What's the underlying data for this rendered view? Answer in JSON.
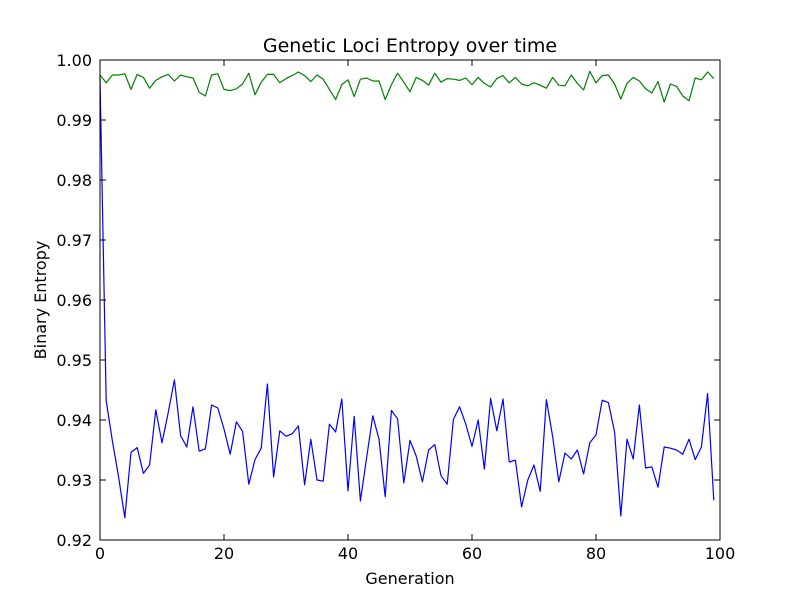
{
  "chart_data": {
    "type": "line",
    "title": "Genetic Loci Entropy over time",
    "xlabel": "Generation",
    "ylabel": "Binary Entropy",
    "xlim": [
      0,
      100
    ],
    "ylim": [
      0.92,
      1.0
    ],
    "xticks": [
      0,
      20,
      40,
      60,
      80,
      100
    ],
    "xtick_labels": [
      "0",
      "20",
      "40",
      "60",
      "80",
      "100"
    ],
    "yticks": [
      0.92,
      0.93,
      0.94,
      0.95,
      0.96,
      0.97,
      0.98,
      0.99,
      1.0
    ],
    "ytick_labels": [
      "0.92",
      "0.93",
      "0.94",
      "0.95",
      "0.96",
      "0.97",
      "0.98",
      "0.99",
      "1.00"
    ],
    "grid": false,
    "legend": false,
    "x": [
      0,
      1,
      2,
      3,
      4,
      5,
      6,
      7,
      8,
      9,
      10,
      11,
      12,
      13,
      14,
      15,
      16,
      17,
      18,
      19,
      20,
      21,
      22,
      23,
      24,
      25,
      26,
      27,
      28,
      29,
      30,
      31,
      32,
      33,
      34,
      35,
      36,
      37,
      38,
      39,
      40,
      41,
      42,
      43,
      44,
      45,
      46,
      47,
      48,
      49,
      50,
      51,
      52,
      53,
      54,
      55,
      56,
      57,
      58,
      59,
      60,
      61,
      62,
      63,
      64,
      65,
      66,
      67,
      68,
      69,
      70,
      71,
      72,
      73,
      74,
      75,
      76,
      77,
      78,
      79,
      80,
      81,
      82,
      83,
      84,
      85,
      86,
      87,
      88,
      89,
      90,
      91,
      92,
      93,
      94,
      95,
      96,
      97,
      98,
      99
    ],
    "series": [
      {
        "color": "#008000",
        "values": [
          0.9975,
          0.9962,
          0.9975,
          0.9975,
          0.9977,
          0.9951,
          0.9976,
          0.9971,
          0.9953,
          0.9966,
          0.9972,
          0.9976,
          0.9965,
          0.9975,
          0.9972,
          0.997,
          0.9946,
          0.994,
          0.9975,
          0.9977,
          0.9951,
          0.9949,
          0.9952,
          0.996,
          0.9978,
          0.9942,
          0.9963,
          0.9976,
          0.9976,
          0.9962,
          0.9969,
          0.9974,
          0.998,
          0.9974,
          0.9964,
          0.9975,
          0.9968,
          0.9951,
          0.9934,
          0.9959,
          0.9967,
          0.9939,
          0.9968,
          0.997,
          0.9965,
          0.9965,
          0.9934,
          0.9959,
          0.9978,
          0.9963,
          0.9947,
          0.9971,
          0.9966,
          0.9958,
          0.9978,
          0.9963,
          0.9969,
          0.9968,
          0.9966,
          0.997,
          0.9959,
          0.9971,
          0.9961,
          0.9955,
          0.9969,
          0.9974,
          0.9962,
          0.9971,
          0.996,
          0.9957,
          0.9962,
          0.9958,
          0.9953,
          0.9971,
          0.9958,
          0.9957,
          0.9975,
          0.9961,
          0.995,
          0.9981,
          0.9962,
          0.9974,
          0.9975,
          0.996,
          0.9935,
          0.9961,
          0.9971,
          0.9965,
          0.9952,
          0.9945,
          0.9964,
          0.993,
          0.996,
          0.9956,
          0.994,
          0.9932,
          0.997,
          0.9967,
          0.998,
          0.9969
        ]
      },
      {
        "color": "#0000ff",
        "values": [
          0.997,
          0.9432,
          0.9365,
          0.9305,
          0.9237,
          0.9346,
          0.9354,
          0.9311,
          0.9325,
          0.9417,
          0.9362,
          0.9412,
          0.9467,
          0.9374,
          0.9355,
          0.9422,
          0.9348,
          0.9352,
          0.9425,
          0.942,
          0.9385,
          0.9343,
          0.9397,
          0.9381,
          0.9293,
          0.9334,
          0.9353,
          0.946,
          0.9305,
          0.9382,
          0.9373,
          0.9377,
          0.939,
          0.9292,
          0.9368,
          0.93,
          0.9298,
          0.9393,
          0.938,
          0.9435,
          0.9282,
          0.9406,
          0.9265,
          0.9337,
          0.9407,
          0.9368,
          0.9272,
          0.9416,
          0.9402,
          0.9295,
          0.9366,
          0.934,
          0.9297,
          0.935,
          0.9359,
          0.9307,
          0.9293,
          0.9401,
          0.9422,
          0.9393,
          0.9356,
          0.94,
          0.9318,
          0.9436,
          0.9382,
          0.9435,
          0.933,
          0.9333,
          0.9255,
          0.93,
          0.9325,
          0.9281,
          0.9434,
          0.9373,
          0.9297,
          0.9345,
          0.9335,
          0.935,
          0.931,
          0.9362,
          0.9375,
          0.9433,
          0.9429,
          0.938,
          0.924,
          0.9368,
          0.9335,
          0.9425,
          0.932,
          0.9322,
          0.9288,
          0.9355,
          0.9353,
          0.935,
          0.9343,
          0.9368,
          0.9334,
          0.9355,
          0.9444,
          0.9266
        ]
      }
    ]
  }
}
